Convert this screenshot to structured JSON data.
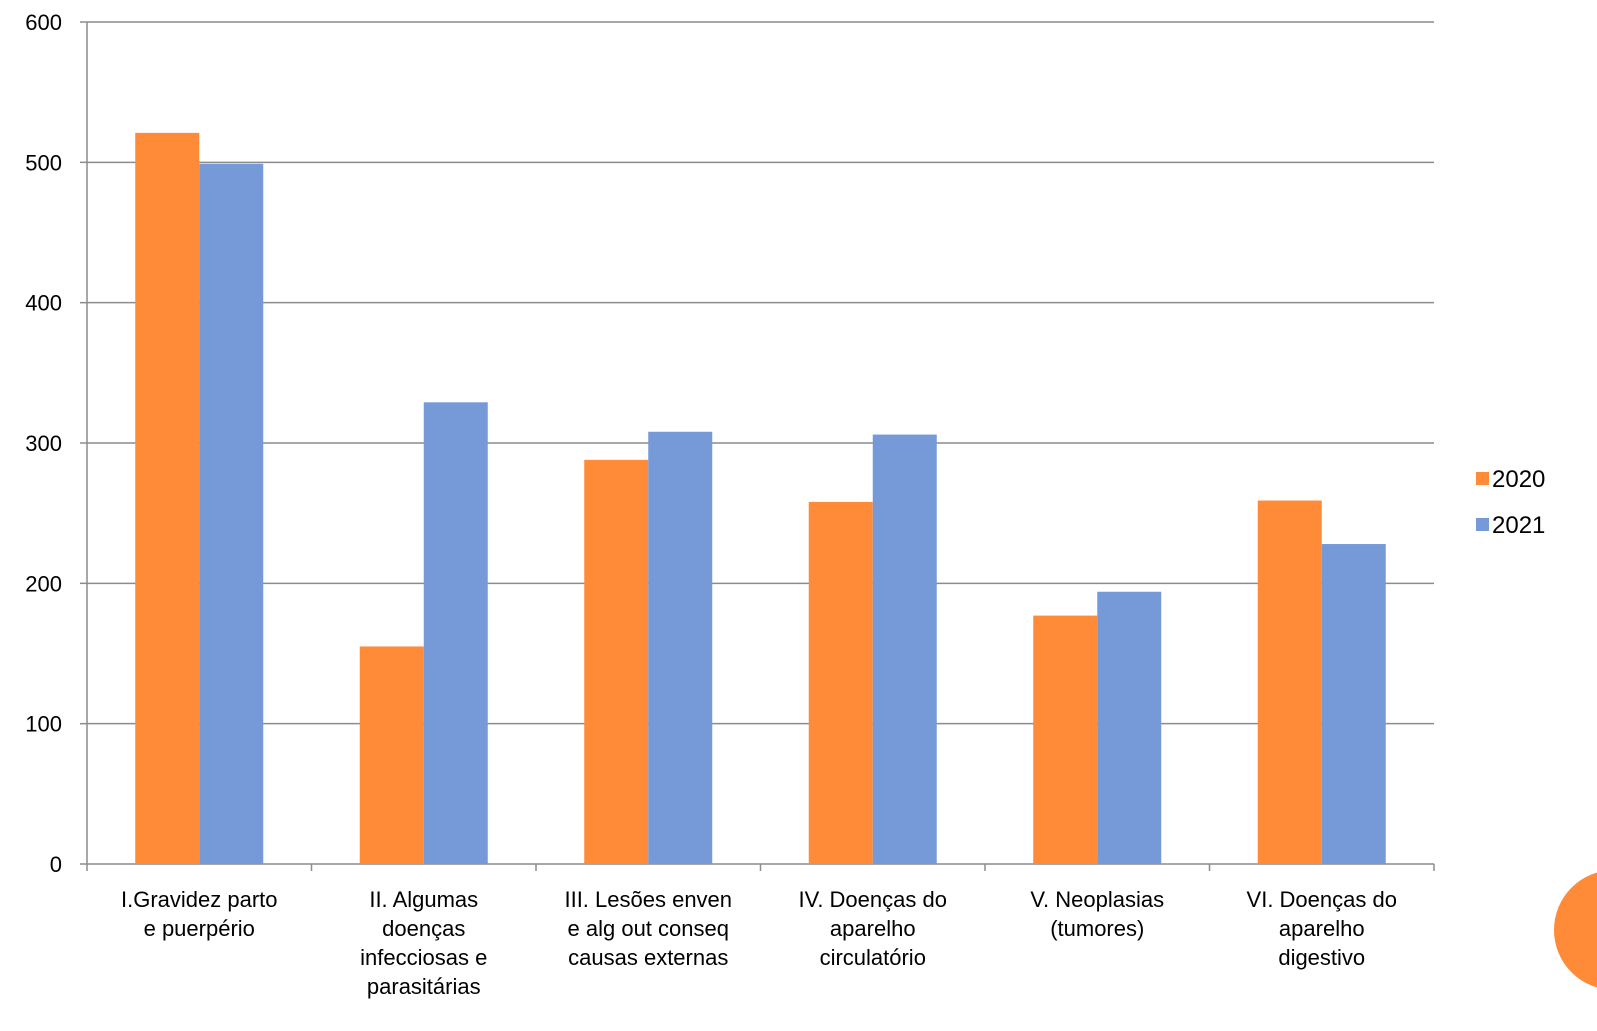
{
  "chart_data": {
    "type": "bar",
    "categories": [
      [
        "I.Gravidez parto",
        "e puerpério"
      ],
      [
        "II. Algumas",
        "doenças",
        "infecciosas e",
        "parasitárias"
      ],
      [
        "III. Lesões enven",
        "e alg out conseq",
        "causas externas"
      ],
      [
        "IV. Doenças do",
        "aparelho",
        "circulatório"
      ],
      [
        "V. Neoplasias",
        "(tumores)"
      ],
      [
        "VI. Doenças do",
        "aparelho",
        "digestivo"
      ]
    ],
    "series": [
      {
        "name": "2020",
        "color": "#FF8A38",
        "values": [
          521,
          155,
          288,
          258,
          177,
          259
        ]
      },
      {
        "name": "2021",
        "color": "#7699D8",
        "values": [
          499,
          329,
          308,
          306,
          194,
          228
        ]
      }
    ],
    "ylim": [
      0,
      600
    ],
    "yticks": [
      0,
      100,
      200,
      300,
      400,
      500,
      600
    ],
    "grid": true,
    "legend_position": "right",
    "title": "",
    "xlabel": "",
    "ylabel": ""
  },
  "decoration": {
    "corner_circle_color": "#FF8A38"
  }
}
